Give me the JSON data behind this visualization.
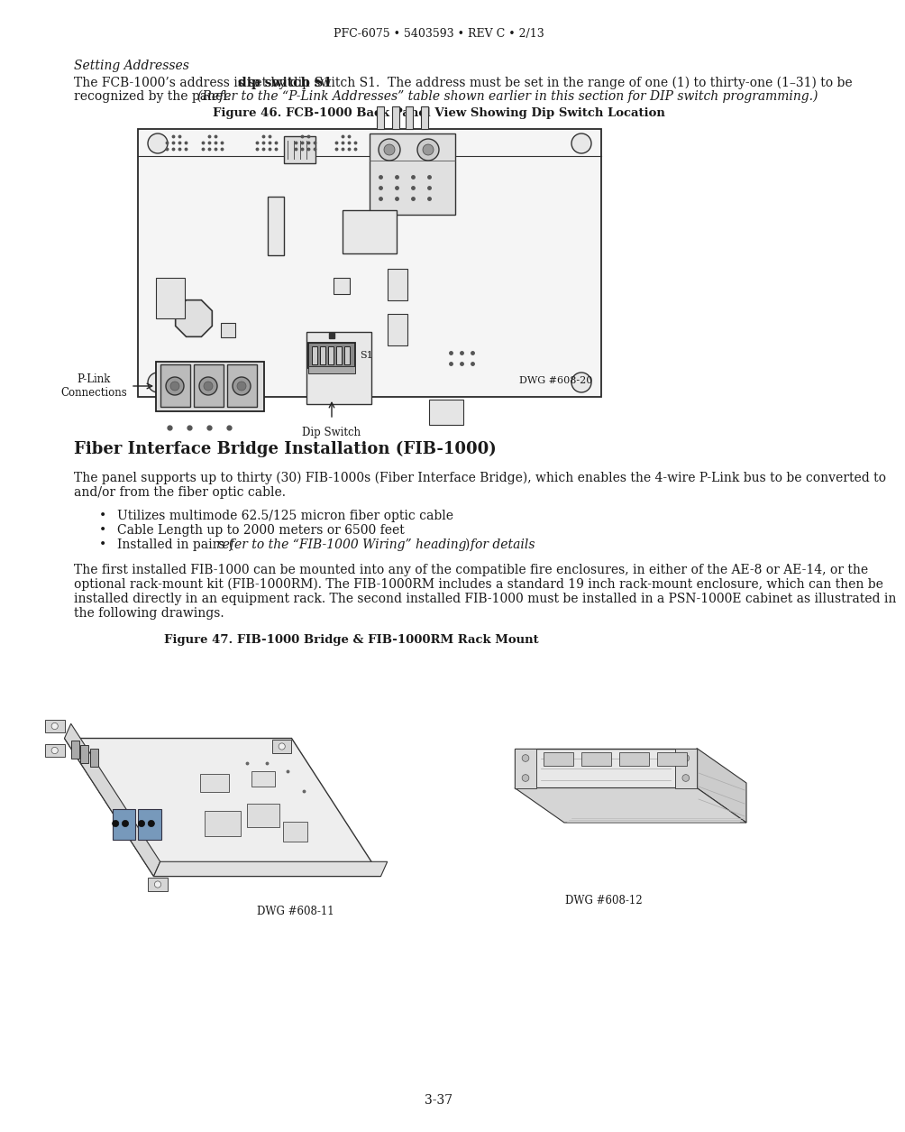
{
  "page_width": 9.54,
  "page_height": 12.35,
  "dpi": 100,
  "bg_color": "#ffffff",
  "text_color": "#1a1a1a",
  "header_text": "PFC-6075 • 5403593 • REV C • 2/13",
  "section_italic": "Setting Addresses",
  "para1_part1": "The FCB-1000’s address is set by ",
  "para1_bold": "dip switch S1",
  "para1_part2": ".  The address must be set in the range of one (1) to thirty-one (1–31) to be",
  "para1_line2": "recognized by the panel. ",
  "para1_italic": "(Refer to the “P-Link Addresses” table shown earlier in this section for DIP switch programming.)",
  "fig46_caption": "Figure 46. FCB-1000 Back Panel View Showing Dip Switch Location",
  "fig46_dwg": "DWG #608-20",
  "fig46_plink": "P-Link\nConnections",
  "fig46_dip": "Dip Switch",
  "fig46_s1": "S1",
  "section_heading": "Fiber Interface Bridge Installation (FIB-1000)",
  "para2_line1": "The panel supports up to thirty (30) FIB-1000s (Fiber Interface Bridge), which enables the 4-wire P-Link bus to be converted to",
  "para2_line2": "and/or from the fiber optic cable.",
  "bullet1": "Utilizes multimode 62.5/125 micron fiber optic cable",
  "bullet2": "Cable Length up to 2000 meters or 6500 feet",
  "bullet3a": "Installed in pairs (",
  "bullet3b": "refer to the “FIB-1000 Wiring” heading for details",
  "bullet3c": ")",
  "para3_line1": "The first installed FIB-1000 can be mounted into any of the compatible fire enclosures, in either of the AE-8 or AE-14, or the",
  "para3_line2": "optional rack-mount kit (FIB-1000RM). The FIB-1000RM includes a standard 19 inch rack-mount enclosure, which can then be",
  "para3_line3": "installed directly in an equipment rack. The second installed FIB-1000 must be installed in a PSN-1000E cabinet as illustrated in",
  "para3_line4": "the following drawings.",
  "fig47_caption": "Figure 47. FIB-1000 Bridge & FIB-1000RM Rack Mount",
  "fig47_dwg1": "DWG #608-11",
  "fig47_dwg2": "DWG #608-12",
  "page_num": "3-37",
  "lmargin": 72,
  "rmargin": 882,
  "body_fs": 10.0,
  "small_fs": 8.5,
  "caption_fs": 9.5,
  "heading_fs": 13.0
}
